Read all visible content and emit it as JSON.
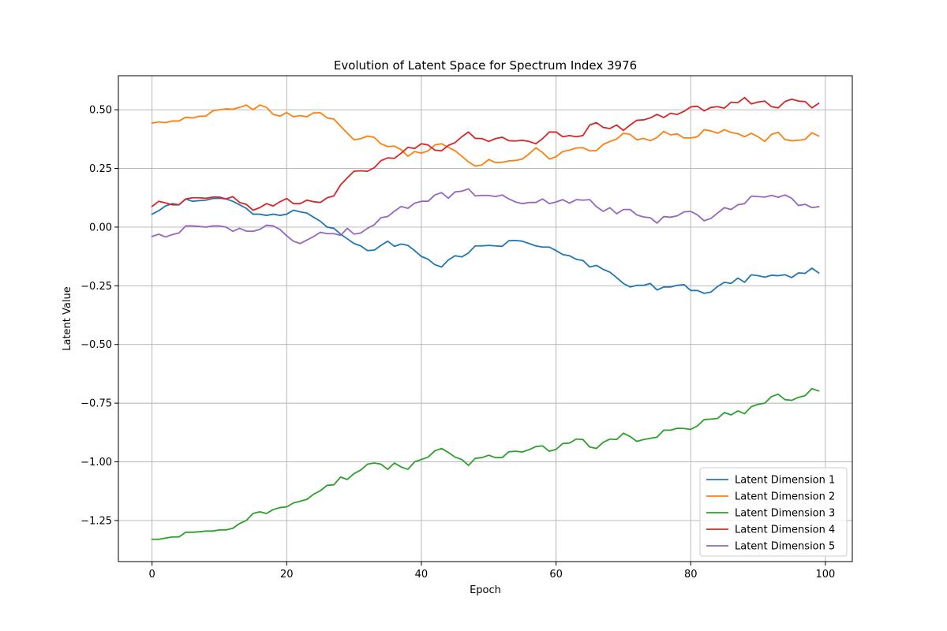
{
  "chart_data": {
    "type": "line",
    "title": "Evolution of Latent Space for Spectrum Index 3976",
    "xlabel": "Epoch",
    "ylabel": "Latent Value",
    "xlim": [
      -5,
      104
    ],
    "ylim": [
      -1.425,
      0.645
    ],
    "xticks": [
      0,
      20,
      40,
      60,
      80,
      100
    ],
    "xtick_labels": [
      "0",
      "20",
      "40",
      "60",
      "80",
      "100"
    ],
    "yticks": [
      0.5,
      0.25,
      0.0,
      -0.25,
      -0.5,
      -0.75,
      -1.0,
      -1.25
    ],
    "ytick_labels": [
      "0.50",
      "0.25",
      "0.00",
      "−0.25",
      "−0.50",
      "−0.75",
      "−1.00",
      "−1.25"
    ],
    "grid": true,
    "legend_position": "lower-right",
    "series": [
      {
        "name": "Latent Dimension 1",
        "color": "#1f77b4",
        "values": [
          0.055,
          0.07,
          0.09,
          0.1,
          0.095,
          0.12,
          0.11,
          0.113,
          0.115,
          0.122,
          0.123,
          0.12,
          0.11,
          0.095,
          0.08,
          0.055,
          0.055,
          0.05,
          0.055,
          0.05,
          0.055,
          0.072,
          0.065,
          0.06,
          0.042,
          0.025,
          0.0,
          -0.005,
          -0.03,
          -0.05,
          -0.07,
          -0.08,
          -0.1,
          -0.098,
          -0.078,
          -0.06,
          -0.082,
          -0.072,
          -0.078,
          -0.1,
          -0.125,
          -0.137,
          -0.16,
          -0.17,
          -0.14,
          -0.122,
          -0.127,
          -0.11,
          -0.08,
          -0.08,
          -0.078,
          -0.08,
          -0.082,
          -0.058,
          -0.057,
          -0.06,
          -0.07,
          -0.08,
          -0.085,
          -0.085,
          -0.1,
          -0.117,
          -0.122,
          -0.137,
          -0.142,
          -0.17,
          -0.163,
          -0.18,
          -0.192,
          -0.215,
          -0.24,
          -0.255,
          -0.248,
          -0.248,
          -0.24,
          -0.268,
          -0.255,
          -0.255,
          -0.248,
          -0.245,
          -0.27,
          -0.27,
          -0.282,
          -0.277,
          -0.253,
          -0.235,
          -0.24,
          -0.217,
          -0.235,
          -0.203,
          -0.207,
          -0.213,
          -0.205,
          -0.207,
          -0.203,
          -0.215,
          -0.195,
          -0.197,
          -0.175,
          -0.195
        ]
      },
      {
        "name": "Latent Dimension 2",
        "color": "#ff7f0e",
        "values": [
          0.443,
          0.448,
          0.445,
          0.452,
          0.452,
          0.468,
          0.465,
          0.472,
          0.473,
          0.495,
          0.5,
          0.504,
          0.502,
          0.51,
          0.52,
          0.5,
          0.52,
          0.51,
          0.48,
          0.473,
          0.488,
          0.47,
          0.475,
          0.47,
          0.487,
          0.487,
          0.465,
          0.46,
          0.43,
          0.4,
          0.372,
          0.377,
          0.388,
          0.382,
          0.355,
          0.343,
          0.345,
          0.33,
          0.302,
          0.322,
          0.315,
          0.325,
          0.35,
          0.355,
          0.34,
          0.325,
          0.302,
          0.278,
          0.26,
          0.265,
          0.288,
          0.275,
          0.276,
          0.282,
          0.284,
          0.29,
          0.312,
          0.338,
          0.318,
          0.29,
          0.3,
          0.322,
          0.328,
          0.337,
          0.338,
          0.325,
          0.326,
          0.352,
          0.365,
          0.375,
          0.4,
          0.395,
          0.372,
          0.378,
          0.368,
          0.382,
          0.408,
          0.393,
          0.397,
          0.38,
          0.38,
          0.385,
          0.415,
          0.41,
          0.4,
          0.415,
          0.403,
          0.398,
          0.385,
          0.4,
          0.385,
          0.365,
          0.395,
          0.404,
          0.373,
          0.368,
          0.37,
          0.374,
          0.402,
          0.388
        ]
      },
      {
        "name": "Latent Dimension 3",
        "color": "#2ca02c",
        "values": [
          -1.33,
          -1.33,
          -1.325,
          -1.32,
          -1.32,
          -1.3,
          -1.3,
          -1.298,
          -1.295,
          -1.295,
          -1.29,
          -1.29,
          -1.283,
          -1.263,
          -1.25,
          -1.22,
          -1.213,
          -1.22,
          -1.203,
          -1.195,
          -1.192,
          -1.175,
          -1.168,
          -1.16,
          -1.138,
          -1.123,
          -1.1,
          -1.098,
          -1.065,
          -1.075,
          -1.05,
          -1.035,
          -1.01,
          -1.005,
          -1.01,
          -1.032,
          -1.005,
          -1.022,
          -1.032,
          -1.0,
          -0.99,
          -0.98,
          -0.953,
          -0.943,
          -0.96,
          -0.98,
          -0.99,
          -1.015,
          -0.985,
          -0.982,
          -0.972,
          -0.982,
          -0.982,
          -0.957,
          -0.955,
          -0.958,
          -0.948,
          -0.935,
          -0.932,
          -0.955,
          -0.947,
          -0.922,
          -0.92,
          -0.903,
          -0.905,
          -0.937,
          -0.943,
          -0.917,
          -0.903,
          -0.905,
          -0.878,
          -0.892,
          -0.913,
          -0.905,
          -0.9,
          -0.895,
          -0.865,
          -0.865,
          -0.857,
          -0.858,
          -0.862,
          -0.847,
          -0.82,
          -0.818,
          -0.815,
          -0.79,
          -0.8,
          -0.783,
          -0.795,
          -0.765,
          -0.755,
          -0.75,
          -0.722,
          -0.712,
          -0.735,
          -0.738,
          -0.725,
          -0.718,
          -0.688,
          -0.698
        ]
      },
      {
        "name": "Latent Dimension 4",
        "color": "#d62728",
        "values": [
          0.088,
          0.11,
          0.103,
          0.095,
          0.095,
          0.12,
          0.125,
          0.125,
          0.123,
          0.128,
          0.128,
          0.12,
          0.13,
          0.105,
          0.097,
          0.072,
          0.083,
          0.1,
          0.09,
          0.108,
          0.122,
          0.1,
          0.1,
          0.115,
          0.108,
          0.105,
          0.125,
          0.133,
          0.18,
          0.21,
          0.238,
          0.24,
          0.238,
          0.253,
          0.283,
          0.295,
          0.293,
          0.315,
          0.34,
          0.335,
          0.355,
          0.35,
          0.328,
          0.325,
          0.348,
          0.36,
          0.385,
          0.405,
          0.378,
          0.377,
          0.365,
          0.377,
          0.383,
          0.368,
          0.367,
          0.37,
          0.365,
          0.355,
          0.377,
          0.405,
          0.405,
          0.385,
          0.39,
          0.385,
          0.39,
          0.435,
          0.445,
          0.425,
          0.42,
          0.435,
          0.412,
          0.435,
          0.455,
          0.457,
          0.465,
          0.48,
          0.467,
          0.485,
          0.48,
          0.493,
          0.512,
          0.515,
          0.495,
          0.51,
          0.513,
          0.507,
          0.532,
          0.53,
          0.552,
          0.525,
          0.533,
          0.537,
          0.513,
          0.508,
          0.535,
          0.545,
          0.537,
          0.535,
          0.508,
          0.527
        ]
      },
      {
        "name": "Latent Dimension 5",
        "color": "#9467bd",
        "values": [
          -0.04,
          -0.03,
          -0.042,
          -0.032,
          -0.025,
          0.005,
          0.005,
          0.003,
          0.0,
          0.005,
          0.005,
          0.0,
          -0.018,
          -0.005,
          -0.017,
          -0.018,
          -0.01,
          0.008,
          0.005,
          -0.01,
          -0.037,
          -0.06,
          -0.07,
          -0.055,
          -0.04,
          -0.022,
          -0.028,
          -0.028,
          -0.035,
          -0.005,
          -0.03,
          -0.025,
          -0.005,
          0.01,
          0.04,
          0.045,
          0.068,
          0.088,
          0.08,
          0.102,
          0.11,
          0.11,
          0.137,
          0.147,
          0.123,
          0.15,
          0.153,
          0.163,
          0.133,
          0.135,
          0.135,
          0.13,
          0.137,
          0.12,
          0.107,
          0.1,
          0.105,
          0.105,
          0.12,
          0.1,
          0.107,
          0.117,
          0.102,
          0.117,
          0.115,
          0.117,
          0.087,
          0.067,
          0.083,
          0.057,
          0.075,
          0.075,
          0.052,
          0.043,
          0.04,
          0.017,
          0.045,
          0.042,
          0.048,
          0.065,
          0.067,
          0.052,
          0.027,
          0.037,
          0.06,
          0.083,
          0.075,
          0.095,
          0.1,
          0.132,
          0.13,
          0.128,
          0.135,
          0.127,
          0.137,
          0.123,
          0.092,
          0.097,
          0.083,
          0.087
        ]
      }
    ]
  }
}
